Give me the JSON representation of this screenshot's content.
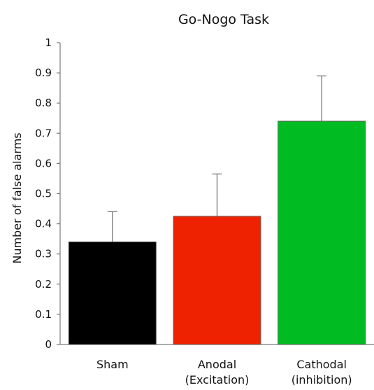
{
  "chart_data": {
    "type": "bar",
    "title": "Go-Nogo Task",
    "xlabel": "",
    "ylabel": "Number of false alarms",
    "categories": [
      [
        "Sham"
      ],
      [
        "Anodal",
        "(Excitation)"
      ],
      [
        "Cathodal",
        "(inhibition)"
      ]
    ],
    "values": [
      0.34,
      0.425,
      0.74
    ],
    "error_upper": [
      0.44,
      0.565,
      0.89
    ],
    "colors": [
      "#000000",
      "#ee2200",
      "#00bb22"
    ],
    "ylim": [
      0,
      1
    ],
    "yticks": [
      "0",
      "0.1",
      "0.2",
      "0.3",
      "0.4",
      "0.5",
      "0.6",
      "0.7",
      "0.8",
      "0.9",
      "1"
    ],
    "grid": false,
    "legend": "none"
  }
}
